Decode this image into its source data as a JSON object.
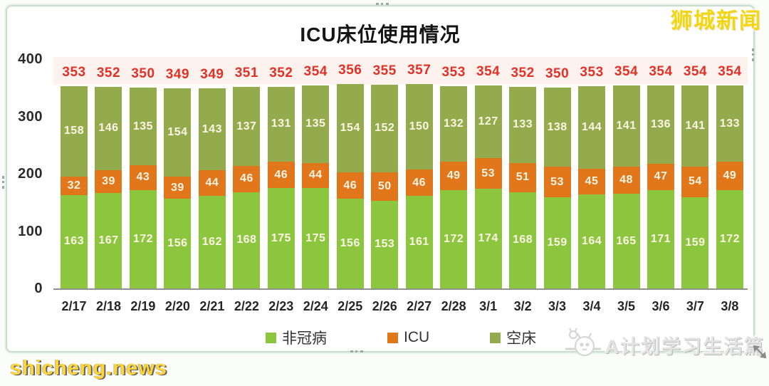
{
  "title": "ICU床位使用情况",
  "logo_text": "狮城新闻",
  "watermarks": {
    "left": "shicheng.news",
    "right": "A计划学习生活篇"
  },
  "colors": {
    "non_covid": "#8CC63F",
    "icu": "#E2761B",
    "empty_bed": "#94AB4D",
    "total_label": "#E33128",
    "totals_band_bg": "#FDF2EE",
    "value_label": "#FCF5E4"
  },
  "y_axis": {
    "ticks": [
      "400",
      "300",
      "200",
      "100",
      "0"
    ],
    "max": 400
  },
  "legend": [
    {
      "label": "非冠病",
      "color": "#8CC63F"
    },
    {
      "label": "ICU",
      "color": "#E2761B"
    },
    {
      "label": "空床",
      "color": "#94AB4D"
    }
  ],
  "chart_data": {
    "type": "bar",
    "stacked": true,
    "title": "ICU床位使用情况",
    "categories": [
      "2/17",
      "2/18",
      "2/19",
      "2/20",
      "2/21",
      "2/22",
      "2/23",
      "2/24",
      "2/25",
      "2/26",
      "2/27",
      "2/28",
      "3/1",
      "3/2",
      "3/3",
      "3/4",
      "3/5",
      "3/6",
      "3/7",
      "3/8"
    ],
    "series": [
      {
        "name": "非冠病",
        "color": "#8CC63F",
        "values": [
          163,
          167,
          172,
          156,
          162,
          168,
          175,
          175,
          156,
          153,
          161,
          172,
          174,
          168,
          159,
          164,
          165,
          171,
          159,
          172
        ]
      },
      {
        "name": "ICU",
        "color": "#E2761B",
        "values": [
          32,
          39,
          43,
          39,
          44,
          46,
          46,
          44,
          46,
          50,
          46,
          49,
          53,
          51,
          53,
          45,
          48,
          47,
          54,
          49
        ]
      },
      {
        "name": "空床",
        "color": "#94AB4D",
        "values": [
          158,
          146,
          135,
          154,
          143,
          137,
          131,
          135,
          154,
          152,
          150,
          132,
          127,
          133,
          138,
          144,
          141,
          136,
          141,
          133
        ]
      }
    ],
    "totals": [
      353,
      352,
      350,
      349,
      349,
      351,
      352,
      354,
      356,
      355,
      357,
      353,
      354,
      352,
      350,
      353,
      354,
      354,
      354,
      354
    ],
    "ylim": [
      0,
      400
    ],
    "grid": false,
    "legend_position": "bottom"
  }
}
